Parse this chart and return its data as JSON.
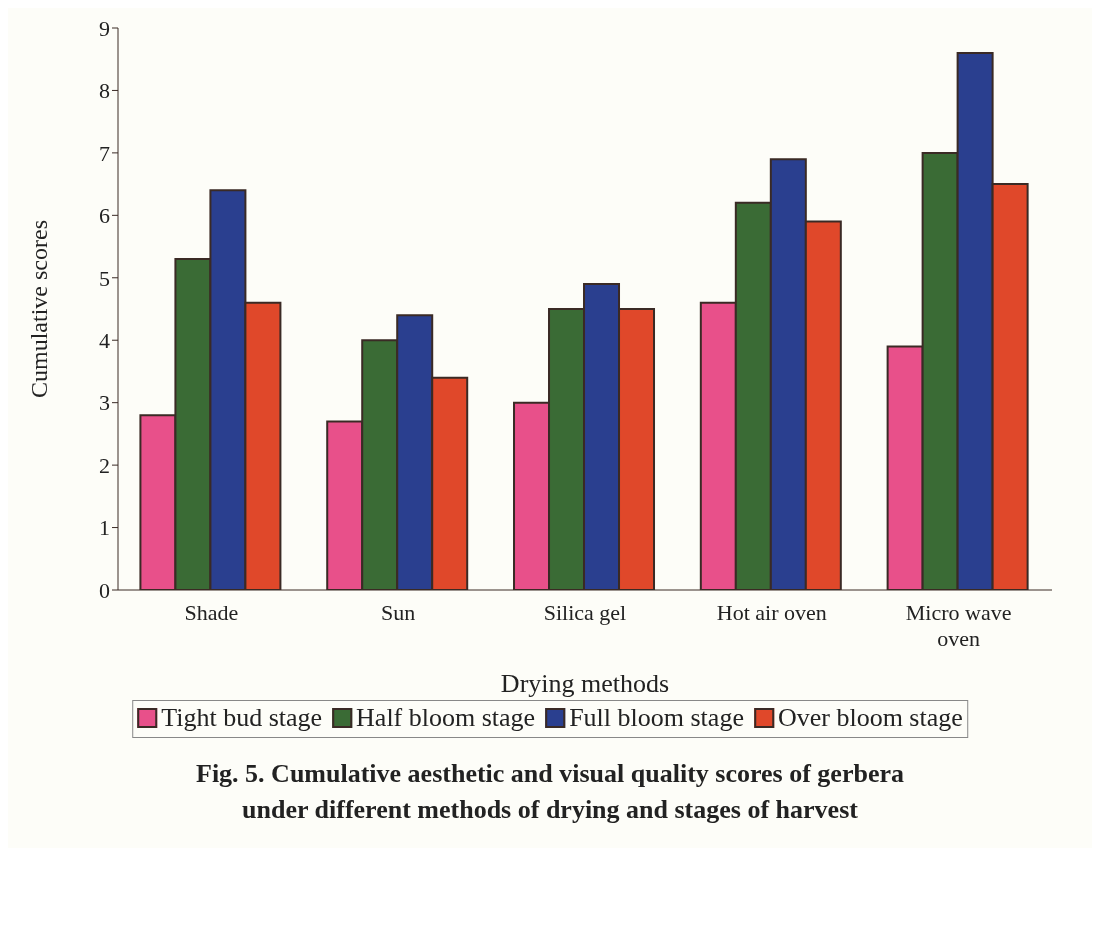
{
  "chart_data": {
    "type": "bar",
    "title": "Fig. 5. Cumulative aesthetic and visual quality scores of gerbera under different methods of drying and stages of harvest",
    "xlabel": "Drying methods",
    "ylabel": "Cumulative scores",
    "categories": [
      "Shade",
      "Sun",
      "Silica gel",
      "Hot air oven",
      "Micro wave oven"
    ],
    "series": [
      {
        "name": "Tight bud stage",
        "color": "#e8508a",
        "values": [
          2.8,
          2.7,
          3.0,
          4.6,
          3.9
        ]
      },
      {
        "name": "Half bloom stage",
        "color": "#3a6b35",
        "values": [
          5.3,
          4.0,
          4.5,
          6.2,
          7.0
        ]
      },
      {
        "name": "Full bloom stage",
        "color": "#2a3f8f",
        "values": [
          6.4,
          4.4,
          4.9,
          6.9,
          8.6
        ]
      },
      {
        "name": "Over bloom stage",
        "color": "#e0482a",
        "values": [
          4.6,
          3.4,
          4.5,
          5.9,
          6.5
        ]
      }
    ],
    "ylim": [
      0,
      9
    ],
    "yticks": [
      0,
      1,
      2,
      3,
      4,
      5,
      6,
      7,
      8,
      9
    ],
    "grid": false,
    "legend": "bottom"
  }
}
